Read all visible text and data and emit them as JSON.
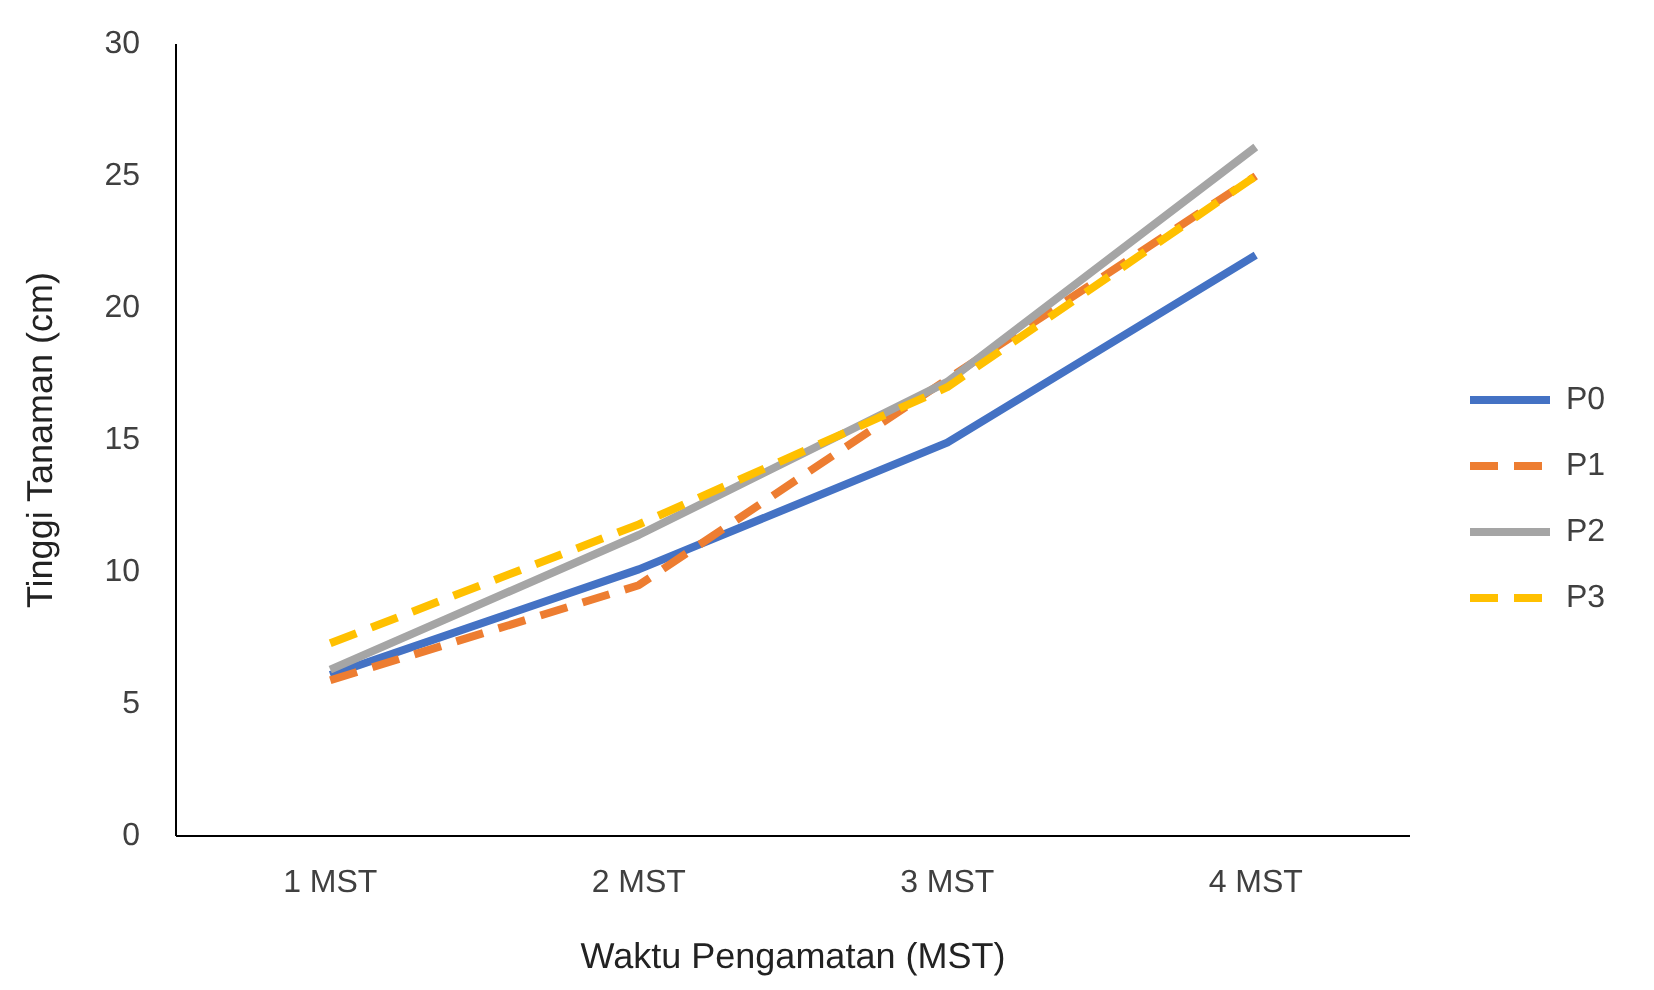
{
  "chart_data": {
    "type": "line",
    "xlabel": "Waktu Pengamatan (MST)",
    "ylabel": "Tinggi Tanaman (cm)",
    "categories": [
      "1 MST",
      "2 MST",
      "3 MST",
      "4 MST"
    ],
    "series": [
      {
        "name": "P0",
        "color": "#4472c4",
        "line_style": "solid",
        "values": [
          6.1,
          10.1,
          14.9,
          22.0
        ]
      },
      {
        "name": "P1",
        "color": "#ed7d31",
        "line_style": "dashed",
        "values": [
          5.9,
          9.5,
          17.3,
          25.0
        ]
      },
      {
        "name": "P2",
        "color": "#a5a5a5",
        "line_style": "solid",
        "values": [
          6.3,
          11.4,
          17.2,
          26.1
        ]
      },
      {
        "name": "P3",
        "color": "#ffc000",
        "line_style": "dashed",
        "values": [
          7.3,
          11.8,
          17.0,
          25.0
        ]
      }
    ],
    "ylim": [
      0,
      30
    ],
    "yticks": [
      0,
      5,
      10,
      15,
      20,
      25,
      30
    ],
    "grid": false,
    "legend": "right",
    "marker": "none"
  }
}
